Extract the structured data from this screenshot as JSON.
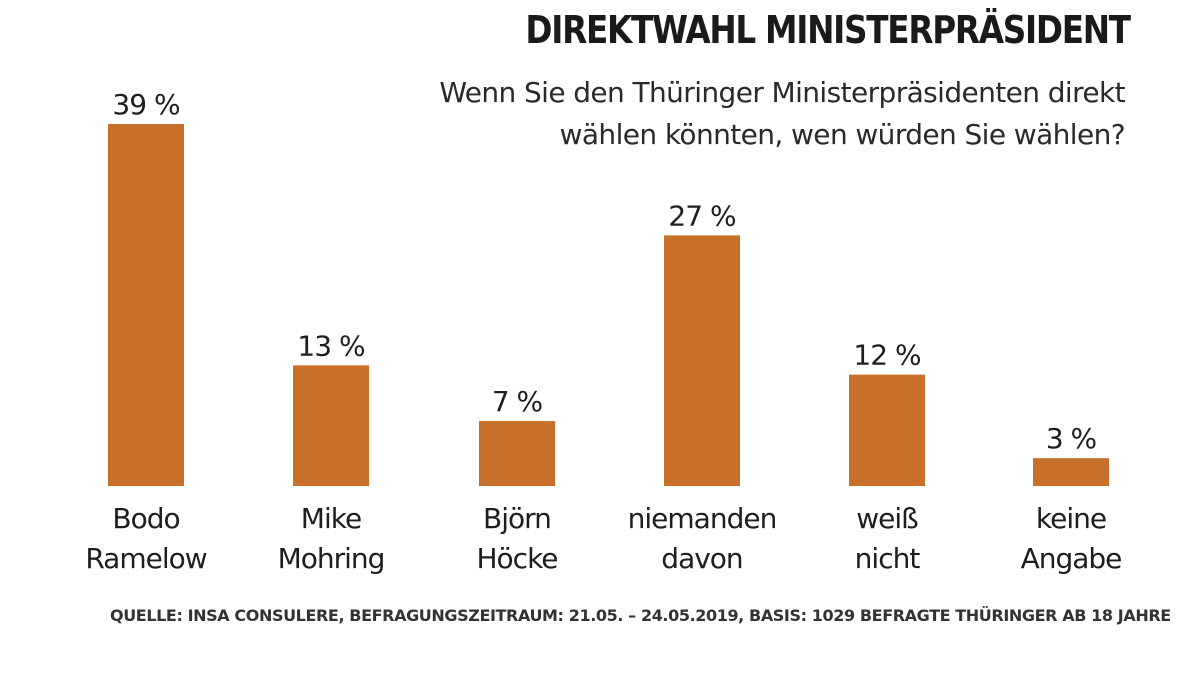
{
  "chart_data": {
    "type": "bar",
    "title": "DIREKTWAHL MINISTERPRÄSIDENT",
    "subtitle": "Wenn Sie den Thüringer Ministerpräsidenten direkt wählen könnten, wen würden Sie wählen?",
    "categories": [
      [
        "Bodo",
        "Ramelow"
      ],
      [
        "Mike",
        "Mohring"
      ],
      [
        "Björn",
        "Höcke"
      ],
      [
        "niemanden",
        "davon"
      ],
      [
        "weiß",
        "nicht"
      ],
      [
        "keine",
        "Angabe"
      ]
    ],
    "values": [
      39,
      13,
      7,
      27,
      12,
      3
    ],
    "value_labels": [
      "39 %",
      "13 %",
      "7 %",
      "27 %",
      "12 %",
      "3 %"
    ],
    "unit": "%",
    "ylim": [
      0,
      39
    ],
    "grid": false,
    "bar_color": "#c8702a",
    "source": "QUELLE: INSA CONSULERE, BEFRAGUNGSZEITRAUM: 21.05. – 24.05.2019, BASIS: 1029 BEFRAGTE THÜRINGER AB 18 JAHRE"
  }
}
